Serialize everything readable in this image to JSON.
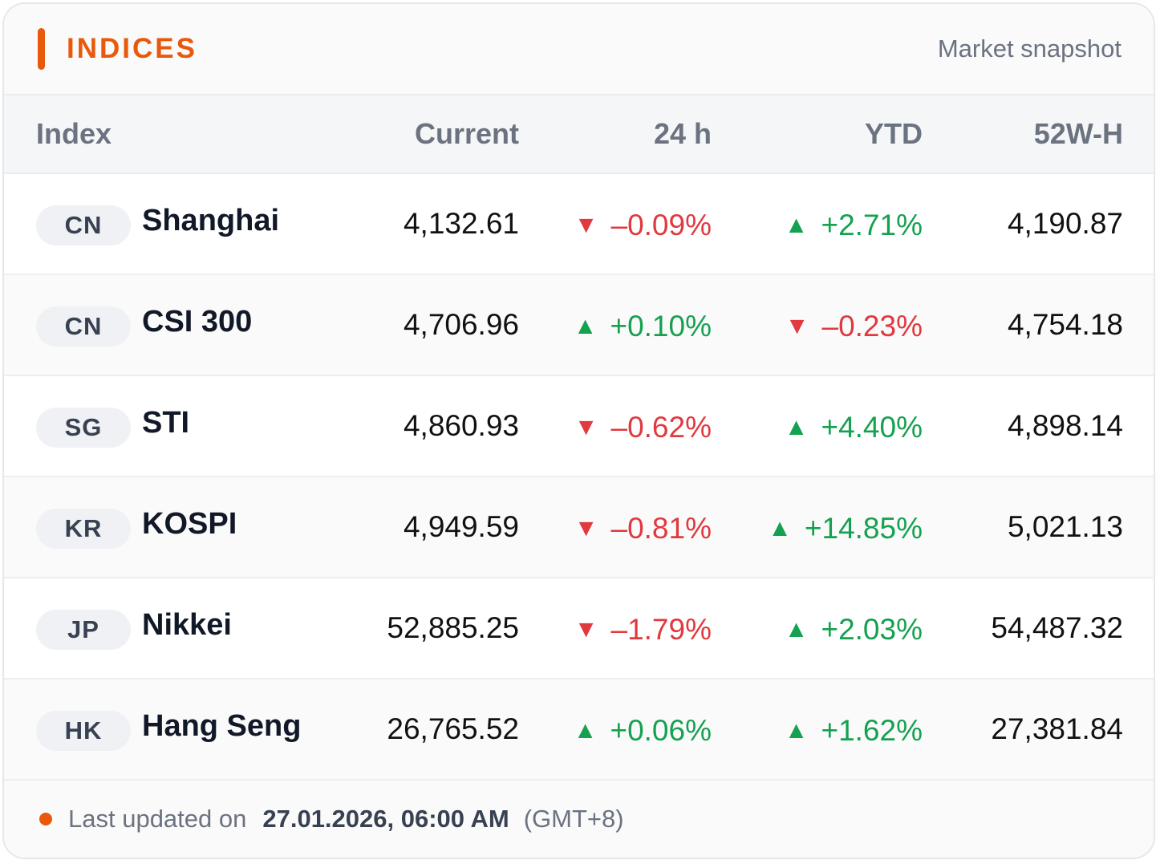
{
  "header": {
    "title": "INDICES",
    "subtitle": "Market snapshot"
  },
  "columns": {
    "index": "Index",
    "current": "Current",
    "h24": "24 h",
    "ytd": "YTD",
    "w52": "52W-H"
  },
  "rows": [
    {
      "code": "CN",
      "name": "Shanghai",
      "current": "4,132.61",
      "h24": "–0.09%",
      "h24_dir": "down",
      "ytd": "+2.71%",
      "ytd_dir": "up",
      "w52": "4,190.87"
    },
    {
      "code": "CN",
      "name": "CSI 300",
      "current": "4,706.96",
      "h24": "+0.10%",
      "h24_dir": "up",
      "ytd": "–0.23%",
      "ytd_dir": "down",
      "w52": "4,754.18"
    },
    {
      "code": "SG",
      "name": "STI",
      "current": "4,860.93",
      "h24": "–0.62%",
      "h24_dir": "down",
      "ytd": "+4.40%",
      "ytd_dir": "up",
      "w52": "4,898.14"
    },
    {
      "code": "KR",
      "name": "KOSPI",
      "current": "4,949.59",
      "h24": "–0.81%",
      "h24_dir": "down",
      "ytd": "+14.85%",
      "ytd_dir": "up",
      "w52": "5,021.13"
    },
    {
      "code": "JP",
      "name": "Nikkei",
      "current": "52,885.25",
      "h24": "–1.79%",
      "h24_dir": "down",
      "ytd": "+2.03%",
      "ytd_dir": "up",
      "w52": "54,487.32"
    },
    {
      "code": "HK",
      "name": "Hang Seng",
      "current": "26,765.52",
      "h24": "+0.06%",
      "h24_dir": "up",
      "ytd": "+1.62%",
      "ytd_dir": "up",
      "w52": "27,381.84"
    }
  ],
  "footer": {
    "label": "Last updated on",
    "datetime": "27.01.2026, 06:00 AM",
    "timezone": "(GMT+8)"
  },
  "icons": {
    "up": "triangle-up-icon",
    "down": "triangle-down-icon",
    "status": "status-dot-icon"
  },
  "colors": {
    "accent": "#e8590c",
    "up": "#15a150",
    "down": "#e0393e"
  }
}
